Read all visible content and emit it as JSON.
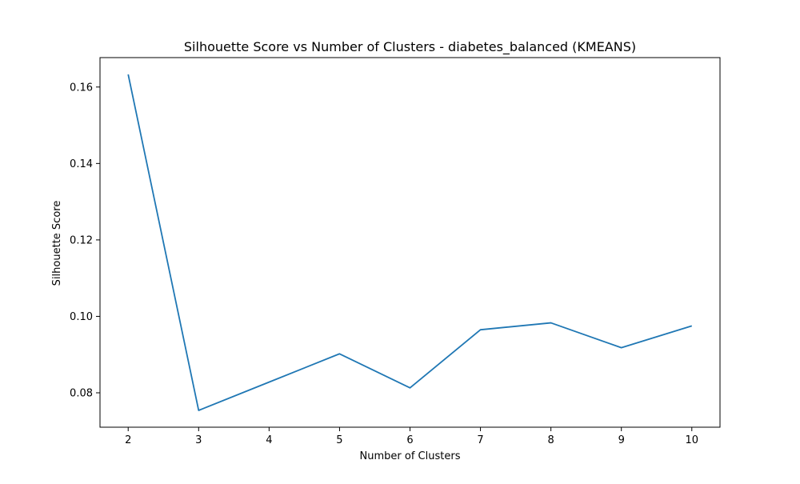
{
  "chart_data": {
    "type": "line",
    "title": "Silhouette Score vs Number of Clusters - diabetes_balanced (KMEANS)",
    "xlabel": "Number of Clusters",
    "ylabel": "Silhouette Score",
    "x": [
      2,
      3,
      4,
      5,
      6,
      7,
      8,
      9,
      10
    ],
    "series": [
      {
        "values": [
          0.1633,
          0.0754,
          0.0828,
          0.0902,
          0.0813,
          0.0965,
          0.0983,
          0.0918,
          0.0975
        ]
      }
    ],
    "x_ticks": [
      "2",
      "3",
      "4",
      "5",
      "6",
      "7",
      "8",
      "9",
      "10"
    ],
    "y_ticks": [
      "0.08",
      "0.10",
      "0.12",
      "0.14",
      "0.16"
    ],
    "y_tick_values": [
      0.08,
      0.1,
      0.12,
      0.14,
      0.16
    ],
    "xlim": [
      1.6,
      10.4
    ],
    "ylim": [
      0.071,
      0.1677
    ],
    "grid": false,
    "line_color": "#1f77b4"
  }
}
